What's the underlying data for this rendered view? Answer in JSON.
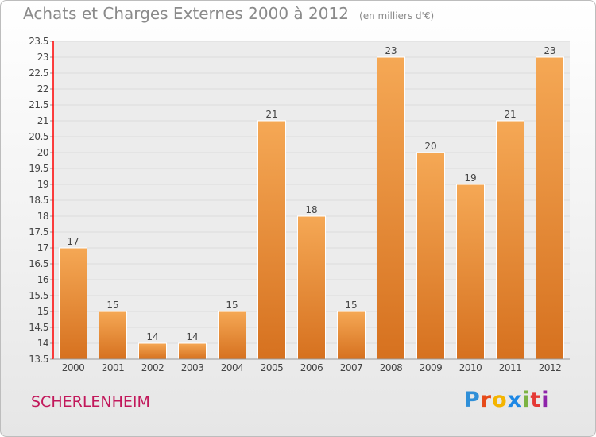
{
  "header": {
    "title": "Achats et Charges Externes 2000 à 2012",
    "unit": "(en milliers d'€)"
  },
  "footer": {
    "city": "SCHERLENHEIM",
    "logo_letters": [
      "P",
      "r",
      "o",
      "x",
      "i",
      "t",
      "i"
    ]
  },
  "colors": {
    "bar_light": "#f5a855",
    "bar_dark": "#d6711f",
    "axis_left": "#ff0000",
    "grid": "#dcdcdc",
    "text": "#444444",
    "city": "#c2185b",
    "logo": [
      "#2f8fd8",
      "#e64a19",
      "#f4b400",
      "#1e88e5",
      "#7cb342",
      "#e53935",
      "#8e24aa"
    ]
  },
  "chart_data": {
    "type": "bar",
    "title": "Achats et Charges Externes 2000 à 2012",
    "subtitle": "(en milliers d'€)",
    "categories": [
      "2000",
      "2001",
      "2002",
      "2003",
      "2004",
      "2005",
      "2006",
      "2007",
      "2008",
      "2009",
      "2010",
      "2011",
      "2012"
    ],
    "values": [
      17,
      15,
      14,
      14,
      15,
      21,
      18,
      15,
      23,
      20,
      19,
      21,
      23
    ],
    "ylim": [
      13.5,
      23.5
    ],
    "yticks": [
      "13.5",
      "14",
      "14.5",
      "15",
      "15.5",
      "16",
      "16.5",
      "17",
      "17.5",
      "18",
      "18.5",
      "19",
      "19.5",
      "20",
      "20.5",
      "21",
      "21.5",
      "22",
      "22.5",
      "23",
      "23.5"
    ],
    "grid": true,
    "xlabel": "",
    "ylabel": ""
  }
}
